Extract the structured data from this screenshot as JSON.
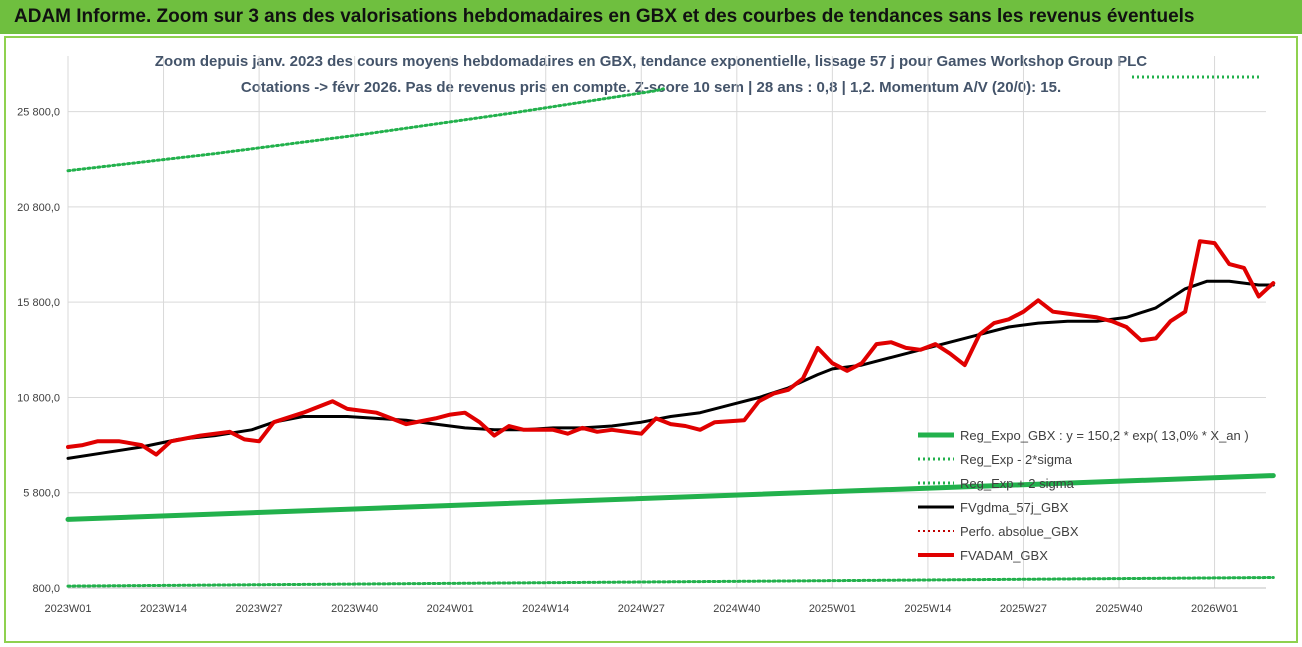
{
  "banner": {
    "title": "ADAM Informe. Zoom sur 3 ans des valorisations hebdomadaires en GBX et des courbes de tendances sans les revenus éventuels"
  },
  "chart_data": {
    "type": "line",
    "title_line1": "Zoom depuis janv. 2023 des cours moyens hebdomadaires en GBX, tendance exponentielle, lissage 57 j pour Games Workshop Group PLC",
    "title_line2": "Cotations -> févr 2026. Pas de revenus pris en compte. Z-score 10 sem | 28 ans : 0,8 | 1,2. Momentum A/V (20/0): 15.",
    "ylim": [
      800,
      28300
    ],
    "y_ticks": [
      "800,0",
      "5 800,0",
      "10 800,0",
      "15 800,0",
      "20 800,0",
      "25 800,0"
    ],
    "y_tick_values": [
      800,
      5800,
      10800,
      15800,
      20800,
      25800
    ],
    "x_ticks": [
      "2023W01",
      "2023W14",
      "2023W27",
      "2023W40",
      "2024W01",
      "2024W14",
      "2024W27",
      "2024W40",
      "2025W01",
      "2025W14",
      "2025W27",
      "2025W40",
      "2026W01"
    ],
    "x_tick_weeks": [
      0,
      13,
      26,
      39,
      52,
      65,
      78,
      91,
      104,
      117,
      130,
      143,
      156
    ],
    "n_weeks": 164,
    "series": [
      {
        "name": "Reg_Expo_GBX : y = 150,2 * exp( 13,0% *  X_an )",
        "color": "#22b14c",
        "style": "solid",
        "width": 5,
        "points": [
          [
            0,
            4400
          ],
          [
            164,
            6700
          ]
        ]
      },
      {
        "name": "Reg_Exp - 2*sigma",
        "color": "#22b14c",
        "style": "dotted",
        "width": 3,
        "points": [
          [
            0,
            900
          ],
          [
            164,
            1350
          ]
        ]
      },
      {
        "name": "Reg_Exp + 2 sigma",
        "color": "#22b14c",
        "style": "dotted",
        "width": 3,
        "points": [
          [
            0,
            22700
          ],
          [
            20,
            23600
          ],
          [
            40,
            24600
          ],
          [
            60,
            25700
          ],
          [
            80,
            26900
          ],
          [
            81,
            27000
          ]
        ]
      },
      {
        "name": "FVgdma_57j_GBX",
        "color": "#000000",
        "style": "solid",
        "width": 3,
        "points": [
          [
            0,
            7600
          ],
          [
            5,
            7900
          ],
          [
            10,
            8200
          ],
          [
            15,
            8600
          ],
          [
            20,
            8800
          ],
          [
            25,
            9100
          ],
          [
            28,
            9500
          ],
          [
            32,
            9800
          ],
          [
            38,
            9800
          ],
          [
            42,
            9700
          ],
          [
            46,
            9600
          ],
          [
            50,
            9400
          ],
          [
            54,
            9200
          ],
          [
            58,
            9100
          ],
          [
            62,
            9100
          ],
          [
            66,
            9200
          ],
          [
            70,
            9200
          ],
          [
            74,
            9300
          ],
          [
            78,
            9500
          ],
          [
            82,
            9800
          ],
          [
            86,
            10000
          ],
          [
            90,
            10400
          ],
          [
            94,
            10800
          ],
          [
            98,
            11300
          ],
          [
            102,
            12000
          ],
          [
            104,
            12300
          ],
          [
            108,
            12500
          ],
          [
            112,
            12900
          ],
          [
            116,
            13300
          ],
          [
            120,
            13700
          ],
          [
            124,
            14100
          ],
          [
            128,
            14500
          ],
          [
            132,
            14700
          ],
          [
            136,
            14800
          ],
          [
            140,
            14800
          ],
          [
            144,
            15000
          ],
          [
            148,
            15500
          ],
          [
            152,
            16500
          ],
          [
            155,
            16900
          ],
          [
            158,
            16900
          ],
          [
            162,
            16700
          ],
          [
            164,
            16700
          ]
        ]
      },
      {
        "name": "Perfo. absolue_GBX",
        "color": "#c00000",
        "style": "dotted",
        "width": 2,
        "points": []
      },
      {
        "name": "FVADAM_GBX",
        "color": "#e00000",
        "style": "solid",
        "width": 4,
        "points": [
          [
            0,
            8200
          ],
          [
            2,
            8300
          ],
          [
            4,
            8500
          ],
          [
            7,
            8500
          ],
          [
            10,
            8300
          ],
          [
            12,
            7800
          ],
          [
            14,
            8500
          ],
          [
            18,
            8800
          ],
          [
            22,
            9000
          ],
          [
            24,
            8600
          ],
          [
            26,
            8500
          ],
          [
            28,
            9500
          ],
          [
            32,
            10000
          ],
          [
            36,
            10600
          ],
          [
            38,
            10200
          ],
          [
            42,
            10000
          ],
          [
            46,
            9400
          ],
          [
            50,
            9700
          ],
          [
            52,
            9900
          ],
          [
            54,
            10000
          ],
          [
            56,
            9500
          ],
          [
            58,
            8800
          ],
          [
            60,
            9300
          ],
          [
            62,
            9100
          ],
          [
            66,
            9100
          ],
          [
            68,
            8900
          ],
          [
            70,
            9200
          ],
          [
            72,
            9000
          ],
          [
            74,
            9100
          ],
          [
            76,
            9000
          ],
          [
            78,
            8900
          ],
          [
            80,
            9700
          ],
          [
            82,
            9400
          ],
          [
            84,
            9300
          ],
          [
            86,
            9100
          ],
          [
            88,
            9500
          ],
          [
            92,
            9600
          ],
          [
            94,
            10600
          ],
          [
            96,
            11000
          ],
          [
            98,
            11200
          ],
          [
            100,
            11800
          ],
          [
            102,
            13400
          ],
          [
            104,
            12600
          ],
          [
            106,
            12200
          ],
          [
            108,
            12600
          ],
          [
            110,
            13600
          ],
          [
            112,
            13700
          ],
          [
            114,
            13400
          ],
          [
            116,
            13300
          ],
          [
            118,
            13600
          ],
          [
            120,
            13100
          ],
          [
            122,
            12500
          ],
          [
            124,
            14100
          ],
          [
            126,
            14700
          ],
          [
            128,
            14900
          ],
          [
            130,
            15300
          ],
          [
            132,
            15900
          ],
          [
            134,
            15300
          ],
          [
            136,
            15200
          ],
          [
            138,
            15100
          ],
          [
            140,
            15000
          ],
          [
            142,
            14800
          ],
          [
            144,
            14500
          ],
          [
            146,
            13800
          ],
          [
            148,
            13900
          ],
          [
            150,
            14800
          ],
          [
            152,
            15300
          ],
          [
            154,
            19000
          ],
          [
            156,
            18900
          ],
          [
            158,
            17800
          ],
          [
            160,
            17600
          ],
          [
            162,
            16100
          ],
          [
            164,
            16800
          ]
        ]
      }
    ],
    "legend": [
      "Reg_Expo_GBX : y = 150,2 * exp( 13,0% *  X_an )",
      "Reg_Exp - 2*sigma",
      "Reg_Exp + 2 sigma",
      "FVgdma_57j_GBX",
      "Perfo. absolue_GBX",
      "FVADAM_GBX"
    ]
  }
}
